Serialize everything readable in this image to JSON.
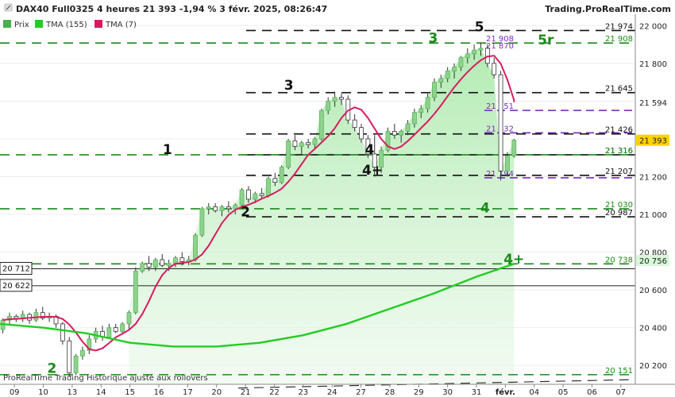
{
  "header": {
    "title": "DAX40 Full0325 4 heures 21 393 -1,94 % 3 févr. 2025, 08:26:47",
    "source": "Trading.ProRealTime.com"
  },
  "legend": [
    {
      "label": "Prix",
      "color": "#4caf50"
    },
    {
      "label": "TMA (155)",
      "color": "#22cc22"
    },
    {
      "label": "TMA (7)",
      "color": "#d81b60"
    }
  ],
  "footer": "ProRealTime Trading  Historique ajusté aux rollovers",
  "chart_data": {
    "type": "candlestick",
    "x_tick_labels": [
      "09",
      "10",
      "13",
      "14",
      "15",
      "16",
      "17",
      "20",
      "21",
      "22",
      "23",
      "24",
      "27",
      "28",
      "29",
      "30",
      "31",
      "févr.",
      "04",
      "05",
      "06",
      "07"
    ],
    "y_ticks": [
      20200,
      20400,
      20600,
      20800,
      21000,
      21200,
      21400,
      21600,
      21800,
      22000
    ],
    "y_tick_labels": [
      "20 200",
      "20 400",
      "20 600",
      "20 800",
      "21 000",
      "21 200",
      "21 400",
      "21 600",
      "21 800",
      "22 000"
    ],
    "ylim": [
      20100,
      22060
    ],
    "last_price": {
      "value": 21393,
      "label": "21 393"
    },
    "tma7_last": {
      "value": 21594,
      "label": "21 594"
    },
    "tma155_last": {
      "value": 20756,
      "label": "20 756"
    },
    "levels": [
      {
        "value": 21974,
        "label": "21 974",
        "style": "black",
        "tag": true
      },
      {
        "value": 21908,
        "label": "21 908",
        "style": "green",
        "tag": true
      },
      {
        "value": 21908,
        "label": "21 908",
        "style": "purple_text"
      },
      {
        "value": 21870,
        "label": "21 870",
        "style": "purple_text"
      },
      {
        "value": 21645,
        "label": "21 645",
        "style": "black",
        "tag": true
      },
      {
        "value": 21551,
        "label": "21 551",
        "style": "purple"
      },
      {
        "value": 21432,
        "label": "21 432",
        "style": "purple"
      },
      {
        "value": 21426,
        "label": "21 426",
        "style": "black",
        "tag": true
      },
      {
        "value": 21316,
        "label": "21 316",
        "style": "black",
        "tag": true
      },
      {
        "value": 21316,
        "label": "21 316",
        "style": "green",
        "tag": true
      },
      {
        "value": 21207,
        "label": "21 207",
        "style": "black",
        "tag": true
      },
      {
        "value": 21194,
        "label": "21 194",
        "style": "purple"
      },
      {
        "value": 21030,
        "label": "21 030",
        "style": "green",
        "tag": true
      },
      {
        "value": 20987,
        "label": "20 987",
        "style": "black",
        "tag": true
      },
      {
        "value": 20738,
        "label": "20 738",
        "style": "green",
        "tag": true
      },
      {
        "value": 20151,
        "label": "20 151",
        "style": "green",
        "tag": true
      }
    ],
    "h_lines": [
      {
        "value": 20712,
        "label": "20 712"
      },
      {
        "value": 20622,
        "label": "20 622"
      }
    ],
    "annotations": [
      {
        "text": "1",
        "x": 5.8,
        "y": 21320,
        "color": "black"
      },
      {
        "text": "2",
        "x": 8.5,
        "y": 20990,
        "color": "black"
      },
      {
        "text": "3",
        "x": 10.0,
        "y": 21660,
        "color": "black"
      },
      {
        "text": "4",
        "x": 12.8,
        "y": 21320,
        "color": "black"
      },
      {
        "text": "4+",
        "x": 12.9,
        "y": 21210,
        "color": "black"
      },
      {
        "text": "3",
        "x": 15.0,
        "y": 21910,
        "color": "green"
      },
      {
        "text": "5",
        "x": 16.6,
        "y": 21970,
        "color": "black"
      },
      {
        "text": "5r",
        "x": 18.9,
        "y": 21900,
        "color": "green"
      },
      {
        "text": "4",
        "x": 16.8,
        "y": 21010,
        "color": "green"
      },
      {
        "text": "4+",
        "x": 17.8,
        "y": 20740,
        "color": "green"
      },
      {
        "text": "2",
        "x": 1.8,
        "y": 20160,
        "color": "green"
      }
    ],
    "candles": [
      [
        20390,
        20450,
        20370,
        20440
      ],
      [
        20440,
        20480,
        20420,
        20460
      ],
      [
        20460,
        20470,
        20430,
        20450
      ],
      [
        20450,
        20490,
        20430,
        20470
      ],
      [
        20470,
        20480,
        20420,
        20440
      ],
      [
        20440,
        20500,
        20430,
        20480
      ],
      [
        20480,
        20510,
        20440,
        20450
      ],
      [
        20450,
        20480,
        20430,
        20460
      ],
      [
        20460,
        20470,
        20400,
        20420
      ],
      [
        20420,
        20430,
        20310,
        20330
      ],
      [
        20330,
        20350,
        20140,
        20160
      ],
      [
        20160,
        20260,
        20150,
        20250
      ],
      [
        20250,
        20300,
        20230,
        20280
      ],
      [
        20280,
        20360,
        20260,
        20340
      ],
      [
        20340,
        20400,
        20320,
        20380
      ],
      [
        20380,
        20410,
        20330,
        20350
      ],
      [
        20350,
        20420,
        20340,
        20400
      ],
      [
        20400,
        20420,
        20370,
        20380
      ],
      [
        20380,
        20430,
        20370,
        20420
      ],
      [
        20420,
        20490,
        20390,
        20480
      ],
      [
        20480,
        20720,
        20470,
        20700
      ],
      [
        20700,
        20750,
        20690,
        20740
      ],
      [
        20740,
        20780,
        20700,
        20720
      ],
      [
        20720,
        20770,
        20700,
        20760
      ],
      [
        20760,
        20790,
        20720,
        20730
      ],
      [
        20730,
        20760,
        20700,
        20740
      ],
      [
        20740,
        20780,
        20720,
        20770
      ],
      [
        20770,
        20800,
        20730,
        20750
      ],
      [
        20750,
        20780,
        20730,
        20760
      ],
      [
        20760,
        20900,
        20750,
        20890
      ],
      [
        20890,
        21040,
        20880,
        21030
      ],
      [
        21030,
        21060,
        21000,
        21040
      ],
      [
        21040,
        21060,
        21010,
        21020
      ],
      [
        21020,
        21050,
        20990,
        21040
      ],
      [
        21040,
        21070,
        21010,
        21030
      ],
      [
        21030,
        21060,
        21000,
        21050
      ],
      [
        21050,
        21140,
        21040,
        21130
      ],
      [
        21130,
        21150,
        21060,
        21080
      ],
      [
        21080,
        21120,
        21060,
        21110
      ],
      [
        21110,
        21140,
        21080,
        21100
      ],
      [
        21100,
        21200,
        21090,
        21190
      ],
      [
        21190,
        21220,
        21150,
        21170
      ],
      [
        21170,
        21260,
        21160,
        21250
      ],
      [
        21250,
        21400,
        21240,
        21390
      ],
      [
        21390,
        21420,
        21340,
        21360
      ],
      [
        21360,
        21390,
        21320,
        21380
      ],
      [
        21380,
        21400,
        21350,
        21370
      ],
      [
        21370,
        21410,
        21350,
        21400
      ],
      [
        21400,
        21560,
        21390,
        21550
      ],
      [
        21550,
        21620,
        21530,
        21600
      ],
      [
        21600,
        21650,
        21570,
        21620
      ],
      [
        21620,
        21640,
        21580,
        21610
      ],
      [
        21610,
        21630,
        21480,
        21500
      ],
      [
        21500,
        21530,
        21440,
        21460
      ],
      [
        21460,
        21480,
        21380,
        21400
      ],
      [
        21400,
        21420,
        21300,
        21320
      ],
      [
        21320,
        21420,
        21200,
        21250
      ],
      [
        21250,
        21360,
        21220,
        21340
      ],
      [
        21340,
        21460,
        21330,
        21440
      ],
      [
        21440,
        21480,
        21400,
        21420
      ],
      [
        21420,
        21450,
        21380,
        21440
      ],
      [
        21440,
        21500,
        21420,
        21480
      ],
      [
        21480,
        21560,
        21460,
        21540
      ],
      [
        21540,
        21580,
        21510,
        21560
      ],
      [
        21560,
        21640,
        21540,
        21620
      ],
      [
        21620,
        21720,
        21600,
        21700
      ],
      [
        21700,
        21740,
        21670,
        21720
      ],
      [
        21720,
        21780,
        21700,
        21760
      ],
      [
        21760,
        21800,
        21720,
        21780
      ],
      [
        21780,
        21840,
        21760,
        21830
      ],
      [
        21830,
        21880,
        21800,
        21850
      ],
      [
        21850,
        21900,
        21820,
        21870
      ],
      [
        21870,
        21910,
        21840,
        21880
      ],
      [
        21880,
        21900,
        21780,
        21800
      ],
      [
        21800,
        21830,
        21720,
        21740
      ],
      [
        21740,
        21760,
        21180,
        21230
      ],
      [
        21230,
        21330,
        21200,
        21310
      ],
      [
        21310,
        21400,
        21300,
        21393
      ]
    ]
  }
}
